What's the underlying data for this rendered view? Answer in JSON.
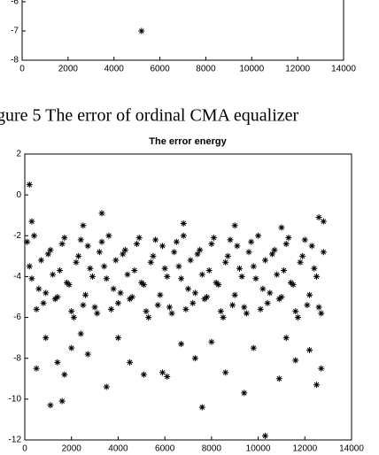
{
  "chart_data": [
    {
      "type": "scatter",
      "caption": "gure 5 The error of ordinal CMA equalizer",
      "x": [
        5200
      ],
      "values": [
        -7
      ],
      "color": "#000000",
      "xlim": [
        0,
        14000
      ],
      "xticks": [
        0,
        2000,
        4000,
        6000,
        8000,
        10000,
        12000,
        14000
      ],
      "ylim": [
        -8,
        -5
      ],
      "yticks": [
        -8,
        -7,
        -6
      ]
    },
    {
      "type": "scatter",
      "title": "The error energy",
      "color": "#000000",
      "x": [
        100,
        300,
        500,
        700,
        900,
        1100,
        1300,
        1500,
        1700,
        1900,
        2100,
        2300,
        2500,
        2700,
        2900,
        3100,
        3300,
        3500,
        3700,
        3900,
        4100,
        4300,
        4500,
        4700,
        4900,
        5100,
        5300,
        5500,
        5700,
        5900,
        6100,
        6300,
        6500,
        6700,
        6900,
        7100,
        7300,
        7500,
        7700,
        7900,
        8100,
        8300,
        8500,
        8700,
        8900,
        9100,
        9300,
        9500,
        9700,
        9900,
        10100,
        10300,
        10500,
        10700,
        10900,
        11100,
        11300,
        11500,
        11700,
        11900,
        12100,
        12300,
        12500,
        12700,
        200,
        400,
        600,
        800,
        1000,
        1200,
        1400,
        1600,
        1800,
        2000,
        2200,
        2400,
        2600,
        2800,
        3000,
        3200,
        3400,
        3600,
        3800,
        4000,
        4200,
        4400,
        4600,
        4800,
        5000,
        5200,
        5400,
        5600,
        5800,
        6000,
        6200,
        6400,
        6600,
        6800,
        7000,
        7200,
        7400,
        7600,
        7800,
        8000,
        8200,
        8400,
        8600,
        8800,
        9000,
        9200,
        9400,
        9600,
        9800,
        10000,
        10200,
        10400,
        10600,
        10800,
        11000,
        11200,
        11400,
        11600,
        11800,
        12000,
        12200,
        12400,
        12600,
        12800,
        200,
        500,
        1100,
        1600,
        1400,
        1700,
        3500,
        3300,
        2000,
        2700,
        4500,
        5100,
        5900,
        6100,
        7600,
        7300,
        8600,
        9400,
        10300,
        10900,
        11600,
        12500,
        12700,
        12600,
        900,
        2400,
        4000,
        6700,
        8000,
        9800,
        11200,
        12200,
        300,
        2500,
        6800,
        9000,
        11000,
        12800
      ],
      "values": [
        -2.3,
        -4.1,
        -5.6,
        -3.2,
        -4.8,
        -2.7,
        -5.1,
        -3.7,
        -2.1,
        -4.4,
        -6.0,
        -3.0,
        -5.4,
        -2.5,
        -4.0,
        -5.8,
        -2.3,
        -4.1,
        -5.6,
        -3.2,
        -4.8,
        -2.7,
        -5.1,
        -3.7,
        -2.1,
        -4.4,
        -6.0,
        -3.0,
        -5.4,
        -2.5,
        -4.0,
        -5.8,
        -2.3,
        -4.1,
        -5.6,
        -3.2,
        -4.8,
        -2.7,
        -5.1,
        -3.7,
        -2.1,
        -4.4,
        -6.0,
        -3.0,
        -5.4,
        -2.5,
        -4.0,
        -5.8,
        -2.3,
        -4.1,
        -5.6,
        -3.2,
        -4.8,
        -2.7,
        -5.1,
        -3.7,
        -2.1,
        -4.4,
        -6.0,
        -3.0,
        -5.4,
        -2.5,
        -4.0,
        -5.8,
        -3.5,
        -2.0,
        -4.6,
        -5.3,
        -2.9,
        -3.9,
        -5.0,
        -2.4,
        -4.3,
        -5.7,
        -3.3,
        -2.2,
        -4.9,
        -3.6,
        -5.5,
        -2.8,
        -3.5,
        -2.0,
        -4.6,
        -5.3,
        -2.9,
        -3.9,
        -5.0,
        -2.4,
        -4.3,
        -5.7,
        -3.3,
        -2.2,
        -4.9,
        -3.6,
        -5.5,
        -2.8,
        -3.5,
        -2.0,
        -4.6,
        -5.3,
        -2.9,
        -3.9,
        -5.0,
        -2.4,
        -4.3,
        -5.7,
        -3.3,
        -2.2,
        -4.9,
        -3.6,
        -5.5,
        -2.8,
        -3.5,
        -2.0,
        -4.6,
        -5.3,
        -2.9,
        -3.9,
        -5.0,
        -2.4,
        -4.3,
        -5.7,
        -3.3,
        -2.2,
        -4.9,
        -3.6,
        -5.5,
        -2.8,
        0.5,
        -8.5,
        -10.3,
        -10.1,
        -8.2,
        -8.8,
        -9.4,
        -0.9,
        -7.5,
        -7.8,
        -8.2,
        -8.8,
        -8.7,
        -8.9,
        -10.4,
        -8.0,
        -8.7,
        -9.7,
        -11.8,
        -9.0,
        -8.1,
        -9.3,
        -8.5,
        -1.1,
        -7.0,
        -6.8,
        -7.0,
        -7.3,
        -7.2,
        -7.5,
        -7.0,
        -7.6,
        -1.3,
        -1.5,
        -1.4,
        -1.5,
        -1.6,
        -1.3
      ],
      "xlim": [
        0,
        14000
      ],
      "xticks": [
        0,
        2000,
        4000,
        6000,
        8000,
        10000,
        12000,
        14000
      ],
      "ylim": [
        -12,
        2
      ],
      "yticks": [
        2,
        0,
        -2,
        -4,
        -6,
        -8,
        -10,
        -12
      ]
    }
  ]
}
